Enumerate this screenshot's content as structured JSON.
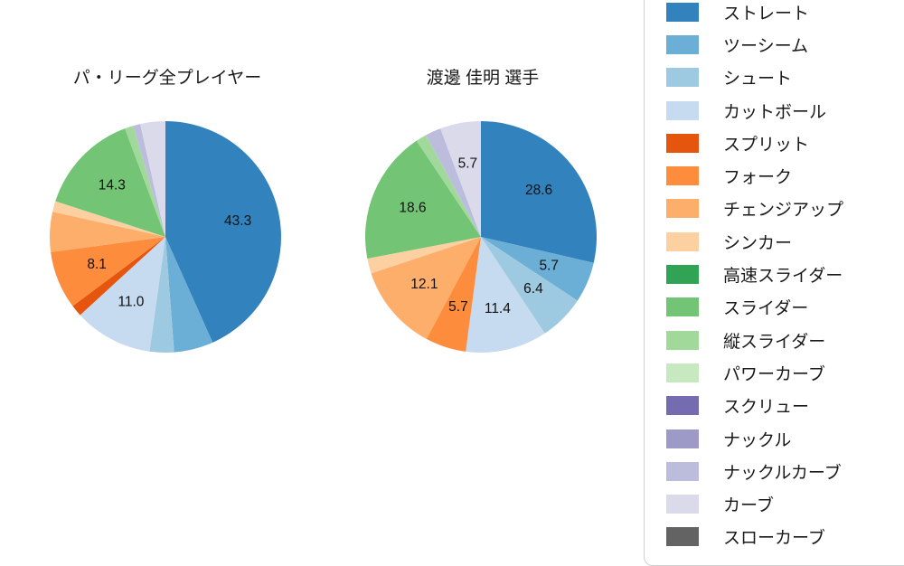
{
  "chart_data": [
    {
      "type": "pie",
      "title": "パ・リーグ全プレイヤー",
      "unit": "percent",
      "start_angle": "top",
      "direction": "clockwise",
      "slices": [
        {
          "label": "ストレート",
          "value": 43.3,
          "color": "#3182bd",
          "labeled": true
        },
        {
          "label": "ツーシーム",
          "value": 5.5,
          "color": "#6baed6",
          "labeled": false
        },
        {
          "label": "シュート",
          "value": 3.4,
          "color": "#9ecae1",
          "labeled": false
        },
        {
          "label": "カットボール",
          "value": 11.0,
          "color": "#c6dbef",
          "labeled": true
        },
        {
          "label": "スプリット",
          "value": 1.6,
          "color": "#e6550d",
          "labeled": false
        },
        {
          "label": "フォーク",
          "value": 8.1,
          "color": "#fd8d3c",
          "labeled": true
        },
        {
          "label": "チェンジアップ",
          "value": 5.6,
          "color": "#fdae6b",
          "labeled": false
        },
        {
          "label": "シンカー",
          "value": 1.5,
          "color": "#fdd0a2",
          "labeled": false
        },
        {
          "label": "スライダー",
          "value": 14.3,
          "color": "#74c476",
          "labeled": true
        },
        {
          "label": "縦スライダー",
          "value": 1.2,
          "color": "#a1d99b",
          "labeled": false
        },
        {
          "label": "ナックルカーブ",
          "value": 1.0,
          "color": "#bcbddc",
          "labeled": false
        },
        {
          "label": "カーブ",
          "value": 3.5,
          "color": "#dadaeb",
          "labeled": false
        }
      ]
    },
    {
      "type": "pie",
      "title": "渡邊 佳明 選手",
      "unit": "percent",
      "start_angle": "top",
      "direction": "clockwise",
      "slices": [
        {
          "label": "ストレート",
          "value": 28.6,
          "color": "#3182bd",
          "labeled": true
        },
        {
          "label": "ツーシーム",
          "value": 5.7,
          "color": "#6baed6",
          "labeled": true
        },
        {
          "label": "シュート",
          "value": 6.4,
          "color": "#9ecae1",
          "labeled": true
        },
        {
          "label": "カットボール",
          "value": 11.4,
          "color": "#c6dbef",
          "labeled": true
        },
        {
          "label": "フォーク",
          "value": 5.7,
          "color": "#fd8d3c",
          "labeled": true
        },
        {
          "label": "チェンジアップ",
          "value": 12.1,
          "color": "#fdae6b",
          "labeled": true
        },
        {
          "label": "シンカー",
          "value": 2.1,
          "color": "#fdd0a2",
          "labeled": false
        },
        {
          "label": "スライダー",
          "value": 18.6,
          "color": "#74c476",
          "labeled": true
        },
        {
          "label": "縦スライダー",
          "value": 1.5,
          "color": "#a1d99b",
          "labeled": false
        },
        {
          "label": "ナックルカーブ",
          "value": 2.2,
          "color": "#bcbddc",
          "labeled": false
        },
        {
          "label": "カーブ",
          "value": 5.7,
          "color": "#dadaeb",
          "labeled": true
        }
      ]
    }
  ],
  "legend": {
    "items": [
      {
        "label": "ストレート",
        "color": "#3182bd"
      },
      {
        "label": "ツーシーム",
        "color": "#6baed6"
      },
      {
        "label": "シュート",
        "color": "#9ecae1"
      },
      {
        "label": "カットボール",
        "color": "#c6dbef"
      },
      {
        "label": "スプリット",
        "color": "#e6550d"
      },
      {
        "label": "フォーク",
        "color": "#fd8d3c"
      },
      {
        "label": "チェンジアップ",
        "color": "#fdae6b"
      },
      {
        "label": "シンカー",
        "color": "#fdd0a2"
      },
      {
        "label": "高速スライダー",
        "color": "#31a354"
      },
      {
        "label": "スライダー",
        "color": "#74c476"
      },
      {
        "label": "縦スライダー",
        "color": "#a1d99b"
      },
      {
        "label": "パワーカーブ",
        "color": "#c7e9c0"
      },
      {
        "label": "スクリュー",
        "color": "#756bb1"
      },
      {
        "label": "ナックル",
        "color": "#9e9ac8"
      },
      {
        "label": "ナックルカーブ",
        "color": "#bcbddc"
      },
      {
        "label": "カーブ",
        "color": "#dadaeb"
      },
      {
        "label": "スローカーブ",
        "color": "#636363"
      }
    ]
  }
}
